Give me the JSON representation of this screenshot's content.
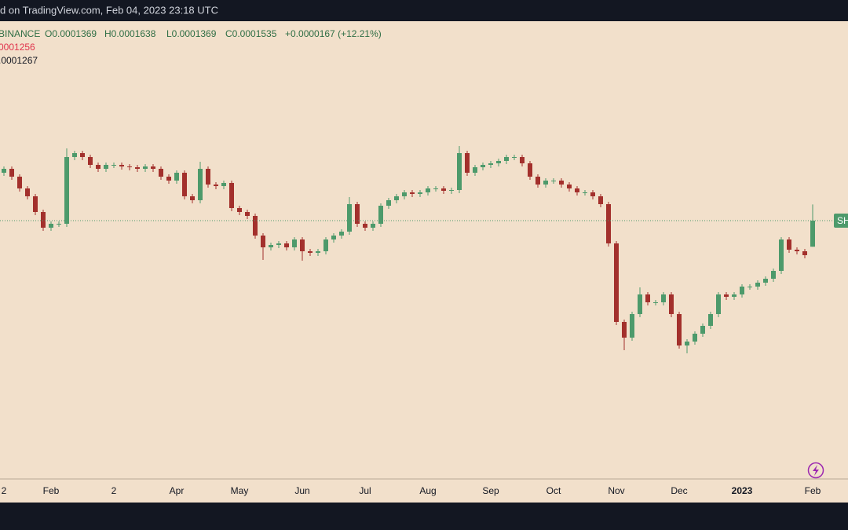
{
  "header": {
    "title": "d on TradingView.com, Feb 04, 2023 23:18 UTC"
  },
  "chart_data": {
    "type": "candlestick",
    "symbol": "BINANCE",
    "legend_values": [
      "O0.0001369",
      "H0.0001638",
      "L0.0001369",
      "C0.0001535",
      "+0.0000167 (+12.21%)"
    ],
    "indicators": [
      {
        "label": "0001256",
        "color": "#e0334c"
      },
      {
        "label": ".0001267",
        "color": "#131722"
      }
    ],
    "price_label": "SH",
    "up_color": "#4d9a6b",
    "down_color": "#a3302c",
    "ylim": [
      0,
      0.00028
    ],
    "categories": [
      "2",
      null,
      null,
      null,
      null,
      null,
      "Feb",
      null,
      null,
      null,
      null,
      null,
      null,
      null,
      "2",
      null,
      null,
      null,
      null,
      null,
      null,
      null,
      "Apr",
      null,
      null,
      null,
      null,
      null,
      null,
      null,
      "May",
      null,
      null,
      null,
      null,
      null,
      null,
      null,
      "Jun",
      null,
      null,
      null,
      null,
      null,
      null,
      null,
      "Jul",
      null,
      null,
      null,
      null,
      null,
      null,
      null,
      "Aug",
      null,
      null,
      null,
      null,
      null,
      null,
      null,
      "Sep",
      null,
      null,
      null,
      null,
      null,
      null,
      null,
      "Oct",
      null,
      null,
      null,
      null,
      null,
      null,
      null,
      "Nov",
      null,
      null,
      null,
      null,
      null,
      null,
      null,
      "Dec",
      null,
      null,
      null,
      null,
      null,
      null,
      null,
      "2023",
      null,
      null,
      null,
      null,
      null,
      null,
      null,
      null,
      "Feb"
    ],
    "open": [
      0.000184,
      0.0001865,
      0.0001815,
      0.000174,
      0.000169,
      0.000159,
      0.000149,
      0.0001515,
      0.0001515,
      0.000194,
      0.0001965,
      0.000194,
      0.000189,
      0.0001865,
      0.000189,
      0.000189,
      0.000188,
      0.0001875,
      0.0001865,
      0.000188,
      0.0001865,
      0.0001815,
      0.000179,
      0.000184,
      0.000169,
      0.0001665,
      0.0001865,
      0.0001765,
      0.0001755,
      0.0001775,
      0.0001615,
      0.000159,
      0.0001565,
      0.000144,
      0.0001365,
      0.000138,
      0.000139,
      0.0001365,
      0.0001415,
      0.000134,
      0.000133,
      0.000134,
      0.0001415,
      0.000144,
      0.0001465,
      0.000164,
      0.0001515,
      0.000149,
      0.0001515,
      0.000163,
      0.0001665,
      0.000169,
      0.0001715,
      0.0001705,
      0.0001715,
      0.000174,
      0.000174,
      0.0001725,
      0.000173,
      0.0001965,
      0.000184,
      0.0001875,
      0.000189,
      0.00019,
      0.0001915,
      0.000194,
      0.000194,
      0.00019,
      0.0001815,
      0.0001765,
      0.000179,
      0.000179,
      0.0001765,
      0.000174,
      0.0001715,
      0.0001715,
      0.000169,
      0.000164,
      0.000139,
      8.9e-05,
      7.9e-05,
      9.4e-05,
      0.0001065,
      0.0001015,
      0.0001015,
      0.0001065,
      9.4e-05,
      7.4e-05,
      7.65e-05,
      8.15e-05,
      8.65e-05,
      9.4e-05,
      0.0001065,
      0.000105,
      0.0001065,
      0.0001115,
      0.0001115,
      0.000114,
      0.0001165,
      0.0001215,
      0.0001415,
      0.000135,
      0.000134,
      0.0001369
    ],
    "high": [
      0.000188,
      0.000188,
      0.000183,
      0.0001755,
      0.0001705,
      0.0001605,
      0.000153,
      0.000153,
      0.0001995,
      0.000198,
      0.000198,
      0.0001955,
      0.0001905,
      0.0001905,
      0.0001905,
      0.0001905,
      0.0001895,
      0.000189,
      0.0001895,
      0.0001895,
      0.000188,
      0.000183,
      0.0001855,
      0.0001855,
      0.0001705,
      0.000191,
      0.000188,
      0.000178,
      0.000179,
      0.000179,
      0.000163,
      0.0001605,
      0.000158,
      0.0001455,
      0.0001395,
      0.0001405,
      0.0001405,
      0.000143,
      0.000143,
      0.0001355,
      0.0001355,
      0.000143,
      0.0001455,
      0.000148,
      0.0001685,
      0.0001655,
      0.000153,
      0.000153,
      0.0001645,
      0.000168,
      0.0001705,
      0.000173,
      0.000173,
      0.000173,
      0.0001755,
      0.0001755,
      0.0001755,
      0.0001745,
      0.000201,
      0.000198,
      0.000189,
      0.0001905,
      0.0001915,
      0.000193,
      0.0001955,
      0.0001955,
      0.0001955,
      0.0001915,
      0.000183,
      0.0001805,
      0.0001805,
      0.0001805,
      0.000178,
      0.0001755,
      0.000173,
      0.000173,
      0.0001705,
      0.0001655,
      0.0001405,
      9.05e-05,
      9.55e-05,
      0.000111,
      0.000108,
      0.000103,
      0.000108,
      0.000108,
      9.55e-05,
      7.8e-05,
      8.3e-05,
      8.8e-05,
      9.55e-05,
      0.000108,
      0.000108,
      0.000108,
      0.000113,
      0.000113,
      0.0001155,
      0.000118,
      0.000123,
      0.000143,
      0.000143,
      0.0001365,
      0.0001355,
      0.0001638
    ],
    "low": [
      0.000182,
      0.0001795,
      0.000172,
      0.000167,
      0.000157,
      0.000147,
      0.000147,
      0.0001495,
      0.0001495,
      0.000192,
      0.000192,
      0.000187,
      0.0001845,
      0.0001845,
      0.000187,
      0.000186,
      0.0001855,
      0.0001845,
      0.0001845,
      0.0001845,
      0.0001795,
      0.000177,
      0.000177,
      0.000167,
      0.0001645,
      0.0001645,
      0.0001745,
      0.0001735,
      0.0001735,
      0.0001595,
      0.000157,
      0.0001545,
      0.000142,
      0.0001285,
      0.0001345,
      0.000136,
      0.0001345,
      0.0001345,
      0.000128,
      0.000131,
      0.000131,
      0.000132,
      0.0001395,
      0.000142,
      0.0001445,
      0.0001495,
      0.000147,
      0.000147,
      0.0001495,
      0.000161,
      0.0001645,
      0.000167,
      0.0001685,
      0.0001685,
      0.0001695,
      0.000172,
      0.0001705,
      0.0001705,
      0.000171,
      0.000182,
      0.000182,
      0.0001855,
      0.000187,
      0.000188,
      0.0001895,
      0.000192,
      0.000188,
      0.0001795,
      0.0001745,
      0.0001745,
      0.000177,
      0.0001745,
      0.000172,
      0.0001695,
      0.0001695,
      0.000167,
      0.000162,
      0.000137,
      8.7e-05,
      7.1e-05,
      7.7e-05,
      9.2e-05,
      9.95e-05,
      9.95e-05,
      9.95e-05,
      9.2e-05,
      7.2e-05,
      6.9e-05,
      7.45e-05,
      7.95e-05,
      8.45e-05,
      9.2e-05,
      0.000103,
      0.000103,
      0.0001045,
      0.0001095,
      0.0001095,
      0.000112,
      0.0001145,
      0.0001195,
      0.000133,
      0.000132,
      0.0001295,
      0.0001369
    ],
    "close": [
      0.0001865,
      0.0001815,
      0.000174,
      0.000169,
      0.000159,
      0.000149,
      0.0001515,
      0.0001515,
      0.000194,
      0.0001965,
      0.000194,
      0.000189,
      0.0001865,
      0.000189,
      0.000189,
      0.000188,
      0.0001875,
      0.0001865,
      0.000188,
      0.0001865,
      0.0001815,
      0.000179,
      0.000184,
      0.000169,
      0.0001665,
      0.0001865,
      0.0001765,
      0.0001755,
      0.0001775,
      0.0001615,
      0.000159,
      0.0001565,
      0.000144,
      0.0001365,
      0.000138,
      0.000139,
      0.0001365,
      0.0001415,
      0.000134,
      0.000133,
      0.000134,
      0.0001415,
      0.000144,
      0.0001465,
      0.000164,
      0.0001515,
      0.000149,
      0.0001515,
      0.000163,
      0.0001665,
      0.000169,
      0.0001715,
      0.0001705,
      0.0001715,
      0.000174,
      0.000174,
      0.0001725,
      0.000173,
      0.0001965,
      0.000184,
      0.0001875,
      0.000189,
      0.00019,
      0.0001915,
      0.000194,
      0.000194,
      0.00019,
      0.0001815,
      0.0001765,
      0.000179,
      0.000179,
      0.0001765,
      0.000174,
      0.0001715,
      0.0001715,
      0.000169,
      0.000164,
      0.000139,
      8.9e-05,
      7.9e-05,
      9.4e-05,
      0.0001065,
      0.0001015,
      0.0001015,
      0.0001065,
      9.4e-05,
      7.4e-05,
      7.65e-05,
      8.15e-05,
      8.65e-05,
      9.4e-05,
      0.0001065,
      0.000105,
      0.0001065,
      0.0001115,
      0.0001115,
      0.000114,
      0.0001165,
      0.0001215,
      0.0001415,
      0.000135,
      0.000134,
      0.0001315,
      0.0001535
    ]
  }
}
